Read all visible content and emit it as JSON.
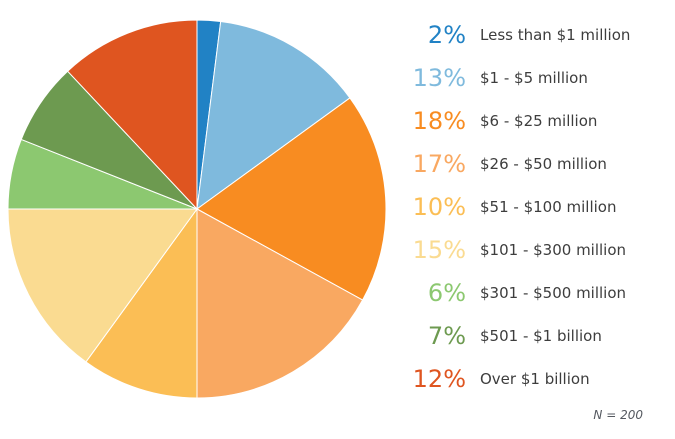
{
  "chart_data": {
    "type": "pie",
    "title": "",
    "start_angle_deg": 0,
    "direction": "clockwise",
    "legend_position": "right",
    "categories": [
      "Less than $1 million",
      "$1 - $5 million",
      "$6 - $25 million",
      "$26 - $50 million",
      "$51 - $100 million",
      "$101 - $300 million",
      "$301 - $500 million",
      "$501 - $1 billion",
      "Over $1 billion"
    ],
    "values": [
      2,
      13,
      18,
      17,
      10,
      15,
      6,
      7,
      12
    ],
    "slices": [
      {
        "label": "Less than $1 million",
        "percent": 2,
        "percent_label": "2%",
        "color": "#2182c5"
      },
      {
        "label": "$1 - $5 million",
        "percent": 13,
        "percent_label": "13%",
        "color": "#7fbadd"
      },
      {
        "label": "$6 - $25 million",
        "percent": 18,
        "percent_label": "18%",
        "color": "#f88c21"
      },
      {
        "label": "$26 - $50 million",
        "percent": 17,
        "percent_label": "17%",
        "color": "#f9a861"
      },
      {
        "label": "$51 - $100 million",
        "percent": 10,
        "percent_label": "10%",
        "color": "#fbbe55"
      },
      {
        "label": "$101 - $300 million",
        "percent": 15,
        "percent_label": "15%",
        "color": "#fadb91"
      },
      {
        "label": "$301 - $500 million",
        "percent": 6,
        "percent_label": "6%",
        "color": "#8cc870"
      },
      {
        "label": "$501 - $1 billion",
        "percent": 7,
        "percent_label": "7%",
        "color": "#6d9a50"
      },
      {
        "label": "Over $1 billion",
        "percent": 12,
        "percent_label": "12%",
        "color": "#df5520"
      }
    ],
    "annotations": [
      "N = 200"
    ]
  },
  "footnote": {
    "text": "N = 200"
  },
  "style": {
    "label_color": "#3d3d3d",
    "footnote_color": "#555960",
    "slice_stroke": "#ffffff"
  }
}
